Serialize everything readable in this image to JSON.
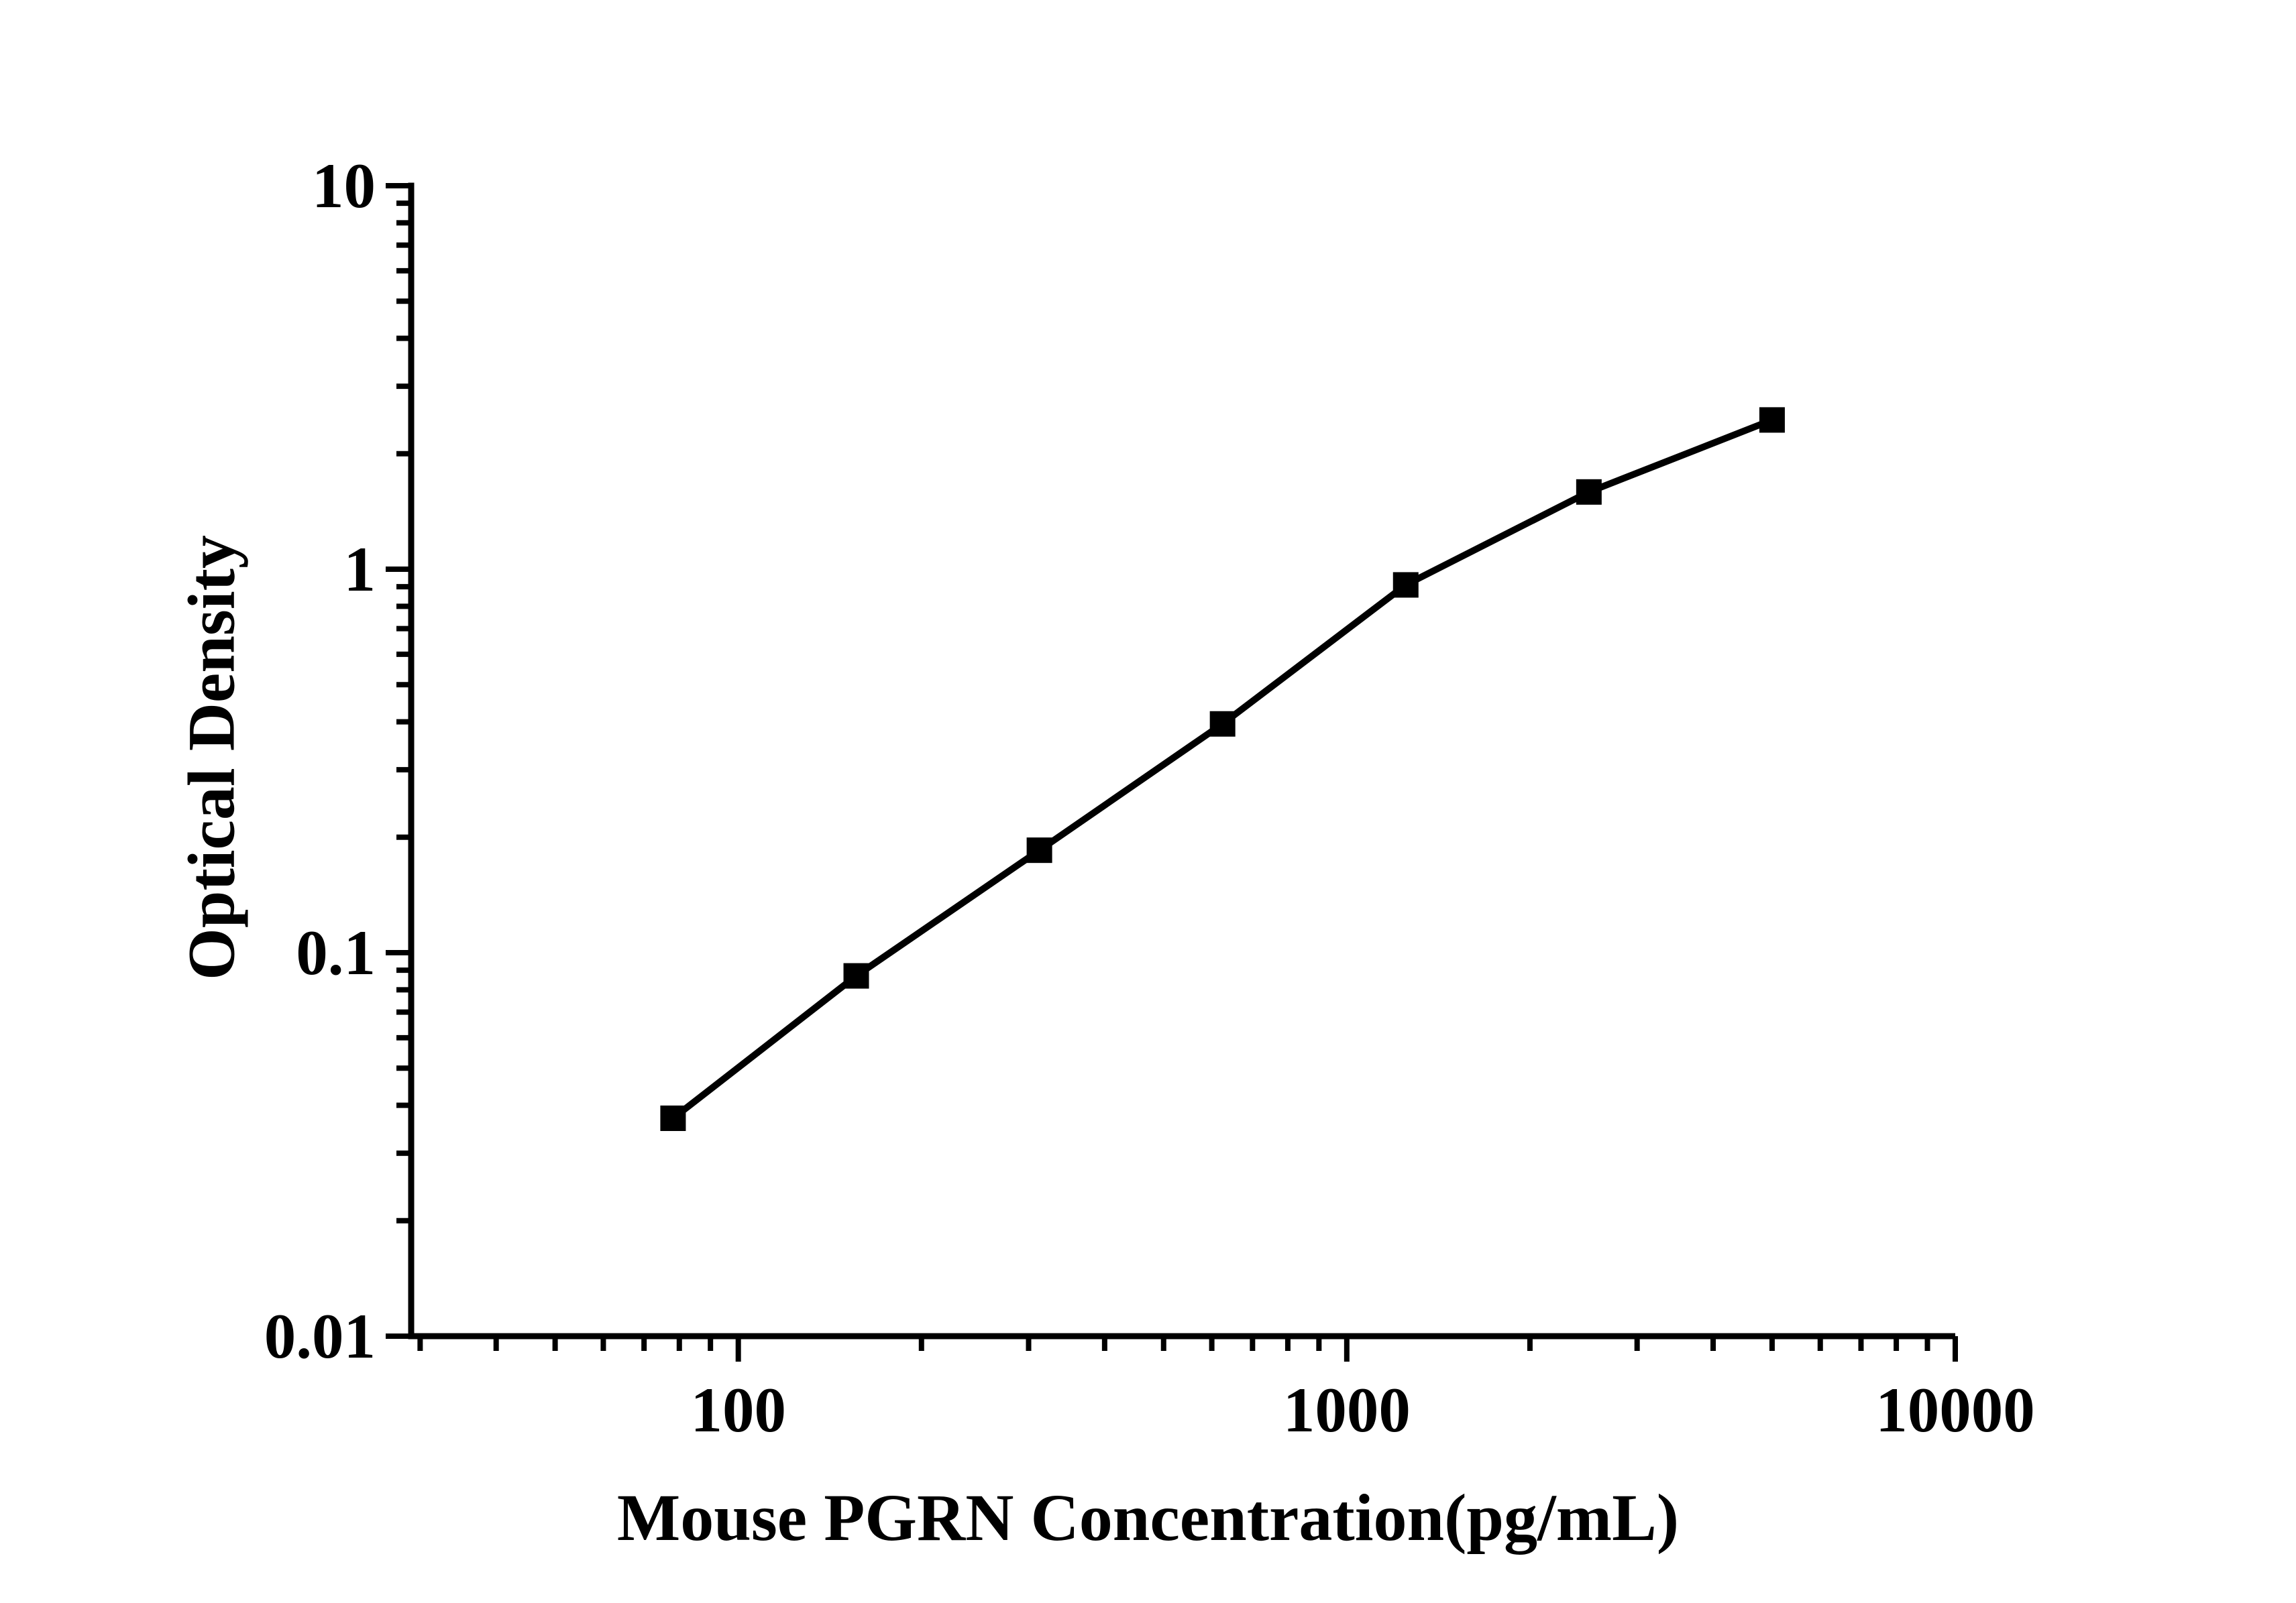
{
  "page": {
    "background_color": "#ffffff",
    "foreground_color": "#000000"
  },
  "chart_data": {
    "type": "line",
    "title": "",
    "xlabel": "Mouse PGRN Concentration(pg/mL)",
    "ylabel": "Optical Density",
    "x_scale": "log",
    "y_scale": "log",
    "xlim": [
      29,
      10000
    ],
    "ylim": [
      0.01,
      10
    ],
    "grid": false,
    "legend": false,
    "line_color": "#000000",
    "marker": "filled-square",
    "marker_size_px": 38,
    "x_ticks": [
      {
        "value": 100,
        "label": "100"
      },
      {
        "value": 1000,
        "label": "1000"
      },
      {
        "value": 10000,
        "label": "10000"
      }
    ],
    "y_ticks": [
      {
        "value": 0.01,
        "label": "0.01"
      },
      {
        "value": 0.1,
        "label": "0.1"
      },
      {
        "value": 1,
        "label": "1"
      },
      {
        "value": 10,
        "label": "10"
      }
    ],
    "minor_ticks": "log-decade-subdivisions",
    "points": [
      {
        "x": 78.125,
        "y": 0.037
      },
      {
        "x": 156.25,
        "y": 0.087
      },
      {
        "x": 312.5,
        "y": 0.185
      },
      {
        "x": 625,
        "y": 0.395
      },
      {
        "x": 1250,
        "y": 0.91
      },
      {
        "x": 2500,
        "y": 1.59
      },
      {
        "x": 5000,
        "y": 2.45
      }
    ]
  }
}
